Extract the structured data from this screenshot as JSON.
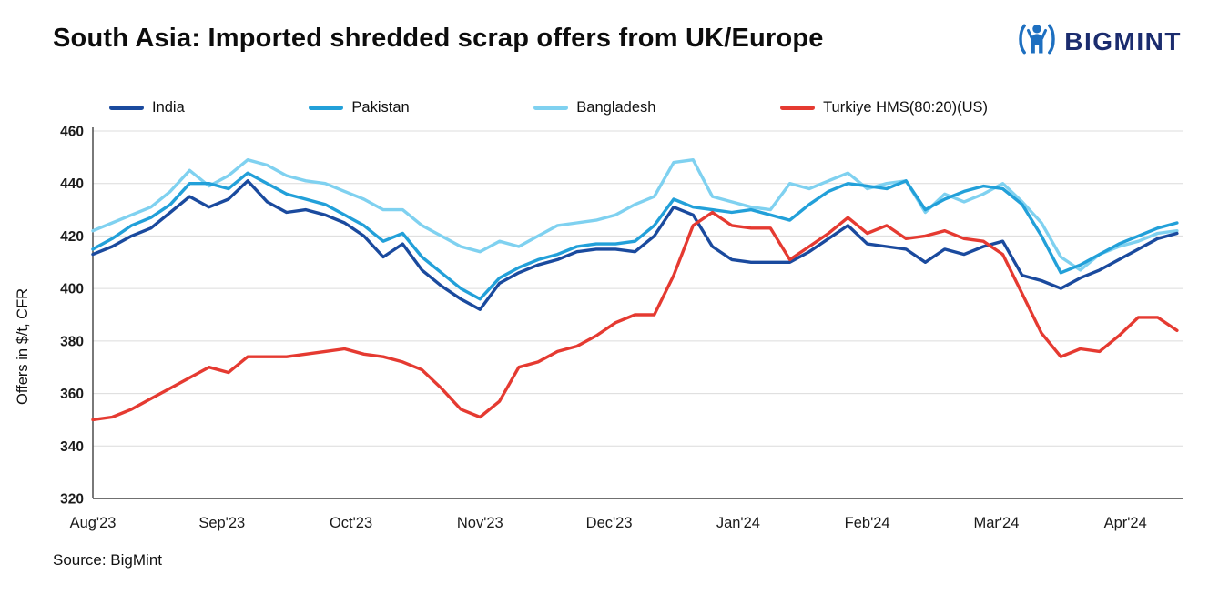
{
  "header": {
    "title": "South Asia: Imported shredded scrap offers from UK/Europe",
    "brand": "BIGMINT"
  },
  "source": "Source: BigMint",
  "chart_data": {
    "type": "line",
    "title": "South Asia: Imported shredded scrap offers from UK/Europe",
    "xlabel": "",
    "ylabel": "Offers in $/t, CFR",
    "ylim": [
      320,
      460
    ],
    "ytick_step": 20,
    "grid": true,
    "legend_position": "top",
    "x_months": [
      "Aug'23",
      "Sep'23",
      "Oct'23",
      "Nov'23",
      "Dec'23",
      "Jan'24",
      "Feb'24",
      "Mar'24",
      "Apr'24"
    ],
    "x_domain": [
      0,
      8.45
    ],
    "x_unit": "months-since-Aug-2023",
    "x": [
      0,
      0.15,
      0.3,
      0.45,
      0.6,
      0.75,
      0.9,
      1.05,
      1.2,
      1.35,
      1.5,
      1.65,
      1.8,
      1.95,
      2.1,
      2.25,
      2.4,
      2.55,
      2.7,
      2.85,
      3,
      3.15,
      3.3,
      3.45,
      3.6,
      3.75,
      3.9,
      4.05,
      4.2,
      4.35,
      4.5,
      4.65,
      4.8,
      4.95,
      5.1,
      5.25,
      5.4,
      5.55,
      5.7,
      5.85,
      6,
      6.15,
      6.3,
      6.45,
      6.6,
      6.75,
      6.9,
      7.05,
      7.2,
      7.35,
      7.5,
      7.65,
      7.8,
      7.95,
      8.1,
      8.25,
      8.4
    ],
    "series": [
      {
        "name": "India",
        "color": "#1a4a9e",
        "values": [
          413,
          416,
          420,
          423,
          429,
          435,
          431,
          434,
          441,
          433,
          429,
          430,
          428,
          425,
          420,
          412,
          417,
          407,
          401,
          396,
          392,
          402,
          406,
          409,
          411,
          414,
          415,
          415,
          414,
          420,
          431,
          428,
          416,
          411,
          410,
          410,
          410,
          414,
          419,
          424,
          417,
          416,
          415,
          410,
          415,
          413,
          416,
          418,
          405,
          403,
          400,
          404,
          407,
          411,
          415,
          419,
          421
        ]
      },
      {
        "name": "Pakistan",
        "color": "#22a0d9",
        "values": [
          415,
          419,
          424,
          427,
          432,
          440,
          440,
          438,
          444,
          440,
          436,
          434,
          432,
          428,
          424,
          418,
          421,
          412,
          406,
          400,
          396,
          404,
          408,
          411,
          413,
          416,
          417,
          417,
          418,
          424,
          434,
          431,
          430,
          429,
          430,
          428,
          426,
          432,
          437,
          440,
          439,
          438,
          441,
          430,
          434,
          437,
          439,
          438,
          432,
          420,
          406,
          409,
          413,
          417,
          420,
          423,
          425
        ]
      },
      {
        "name": "Bangladesh",
        "color": "#7fd1f0",
        "values": [
          422,
          425,
          428,
          431,
          437,
          445,
          439,
          443,
          449,
          447,
          443,
          441,
          440,
          437,
          434,
          430,
          430,
          424,
          420,
          416,
          414,
          418,
          416,
          420,
          424,
          425,
          426,
          428,
          432,
          435,
          448,
          449,
          435,
          433,
          431,
          430,
          440,
          438,
          441,
          444,
          438,
          440,
          441,
          429,
          436,
          433,
          436,
          440,
          433,
          425,
          412,
          407,
          413,
          416,
          418,
          421,
          422
        ]
      },
      {
        "name": "Turkiye HMS(80:20)(US)",
        "color": "#e53a31",
        "values": [
          350,
          351,
          354,
          358,
          362,
          366,
          370,
          368,
          374,
          374,
          374,
          375,
          376,
          377,
          375,
          374,
          372,
          369,
          362,
          354,
          351,
          357,
          370,
          372,
          376,
          378,
          382,
          387,
          390,
          390,
          405,
          424,
          429,
          424,
          423,
          423,
          411,
          416,
          421,
          427,
          421,
          424,
          419,
          420,
          422,
          419,
          418,
          413,
          398,
          383,
          374,
          377,
          376,
          382,
          389,
          389,
          384
        ]
      }
    ]
  }
}
